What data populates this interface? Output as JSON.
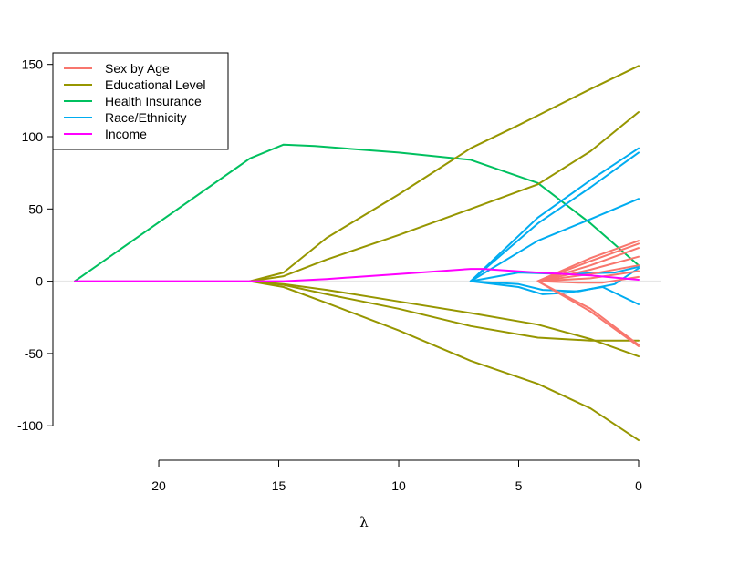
{
  "chart_data": {
    "type": "line",
    "title": "",
    "xlabel": "λ",
    "ylabel": "",
    "xlim": [
      23.5,
      0
    ],
    "ylim": [
      -103,
      158
    ],
    "x_ticks": [
      20,
      15,
      10,
      5,
      0
    ],
    "y_ticks": [
      150,
      100,
      50,
      0,
      -50,
      -100
    ],
    "grid": false,
    "legend_position": "top-left",
    "zero_line": {
      "y": 0,
      "color": "#e6e6e6"
    },
    "groups": [
      {
        "name": "Sex by Age",
        "color": "#f8766d"
      },
      {
        "name": "Educational Level",
        "color": "#969600"
      },
      {
        "name": "Health Insurance",
        "color": "#00c05f"
      },
      {
        "name": "Race/Ethnicity",
        "color": "#00acf0"
      },
      {
        "name": "Income",
        "color": "#ff00ff"
      }
    ],
    "series": [
      {
        "group": "Health Insurance",
        "points": [
          [
            23.5,
            0
          ],
          [
            16.2,
            85
          ],
          [
            14.8,
            94.5
          ],
          [
            13.5,
            93.5
          ],
          [
            10,
            89
          ],
          [
            7,
            84
          ],
          [
            4.2,
            68
          ],
          [
            2,
            40
          ],
          [
            0,
            11
          ]
        ]
      },
      {
        "group": "Educational Level",
        "points": [
          [
            16.2,
            0
          ],
          [
            14.8,
            6
          ],
          [
            13,
            30
          ],
          [
            10,
            60
          ],
          [
            7,
            92
          ],
          [
            5,
            108
          ],
          [
            2,
            133
          ],
          [
            0,
            149
          ]
        ]
      },
      {
        "group": "Educational Level",
        "points": [
          [
            16.2,
            0
          ],
          [
            14.8,
            3.5
          ],
          [
            13,
            15
          ],
          [
            10,
            32
          ],
          [
            7,
            50
          ],
          [
            4.2,
            67
          ],
          [
            2,
            90
          ],
          [
            0,
            117
          ]
        ]
      },
      {
        "group": "Educational Level",
        "points": [
          [
            16.2,
            0
          ],
          [
            14.8,
            -2
          ],
          [
            13,
            -6
          ],
          [
            10,
            -14
          ],
          [
            7,
            -22
          ],
          [
            4.2,
            -30
          ],
          [
            2,
            -40
          ],
          [
            0,
            -52
          ]
        ]
      },
      {
        "group": "Educational Level",
        "points": [
          [
            16.2,
            0
          ],
          [
            14.8,
            -2.5
          ],
          [
            13,
            -9
          ],
          [
            10,
            -19
          ],
          [
            7,
            -31
          ],
          [
            4.2,
            -39
          ],
          [
            2,
            -41
          ],
          [
            0,
            -41
          ]
        ]
      },
      {
        "group": "Educational Level",
        "points": [
          [
            16.2,
            0
          ],
          [
            14.8,
            -4
          ],
          [
            13,
            -15
          ],
          [
            10,
            -34
          ],
          [
            7,
            -55
          ],
          [
            4.2,
            -71
          ],
          [
            2,
            -88
          ],
          [
            0,
            -110
          ]
        ]
      },
      {
        "group": "Race/Ethnicity",
        "points": [
          [
            7,
            0
          ],
          [
            4.2,
            44
          ],
          [
            2,
            70
          ],
          [
            0,
            92
          ]
        ]
      },
      {
        "group": "Race/Ethnicity",
        "points": [
          [
            7,
            0
          ],
          [
            4.2,
            40
          ],
          [
            2,
            65
          ],
          [
            0,
            89
          ]
        ]
      },
      {
        "group": "Race/Ethnicity",
        "points": [
          [
            7,
            0
          ],
          [
            4.2,
            28
          ],
          [
            2,
            43
          ],
          [
            0,
            57
          ]
        ]
      },
      {
        "group": "Race/Ethnicity",
        "points": [
          [
            7,
            0
          ],
          [
            5,
            6
          ],
          [
            3,
            5
          ],
          [
            1,
            6
          ],
          [
            0,
            10
          ]
        ]
      },
      {
        "group": "Race/Ethnicity",
        "points": [
          [
            7,
            0
          ],
          [
            5,
            -4
          ],
          [
            4,
            -9
          ],
          [
            3,
            -8
          ],
          [
            1.5,
            -4
          ],
          [
            0,
            -16
          ]
        ]
      },
      {
        "group": "Race/Ethnicity",
        "points": [
          [
            7,
            0
          ],
          [
            5,
            -2
          ],
          [
            4,
            -6
          ],
          [
            2.5,
            -7
          ],
          [
            1,
            -2
          ],
          [
            0,
            9
          ]
        ]
      },
      {
        "group": "Sex by Age",
        "points": [
          [
            4.2,
            0
          ],
          [
            2,
            16
          ],
          [
            0,
            28
          ]
        ]
      },
      {
        "group": "Sex by Age",
        "points": [
          [
            4.2,
            0
          ],
          [
            2,
            14
          ],
          [
            0,
            26
          ]
        ]
      },
      {
        "group": "Sex by Age",
        "points": [
          [
            4.2,
            0
          ],
          [
            2,
            11
          ],
          [
            0,
            23
          ]
        ]
      },
      {
        "group": "Sex by Age",
        "points": [
          [
            4.2,
            0
          ],
          [
            2,
            8
          ],
          [
            0,
            17
          ]
        ]
      },
      {
        "group": "Sex by Age",
        "points": [
          [
            4.2,
            0
          ],
          [
            2,
            5
          ],
          [
            0,
            11
          ]
        ]
      },
      {
        "group": "Sex by Age",
        "points": [
          [
            4.2,
            0
          ],
          [
            2,
            2
          ],
          [
            0,
            7
          ]
        ]
      },
      {
        "group": "Sex by Age",
        "points": [
          [
            4.2,
            0
          ],
          [
            2.5,
            -1
          ],
          [
            1.5,
            -1
          ],
          [
            0,
            3
          ]
        ]
      },
      {
        "group": "Sex by Age",
        "points": [
          [
            4.2,
            0
          ],
          [
            2,
            -19
          ],
          [
            0,
            -44
          ]
        ]
      },
      {
        "group": "Sex by Age",
        "points": [
          [
            4.2,
            0
          ],
          [
            2,
            -21
          ],
          [
            0,
            -45
          ]
        ]
      },
      {
        "group": "Income",
        "points": [
          [
            23.5,
            0
          ],
          [
            16.2,
            0
          ],
          [
            14.8,
            0
          ],
          [
            13,
            1.5
          ],
          [
            10,
            5
          ],
          [
            7,
            8.5
          ],
          [
            6.5,
            8.5
          ],
          [
            4.2,
            6
          ],
          [
            2,
            4
          ],
          [
            0,
            1
          ]
        ]
      }
    ]
  }
}
